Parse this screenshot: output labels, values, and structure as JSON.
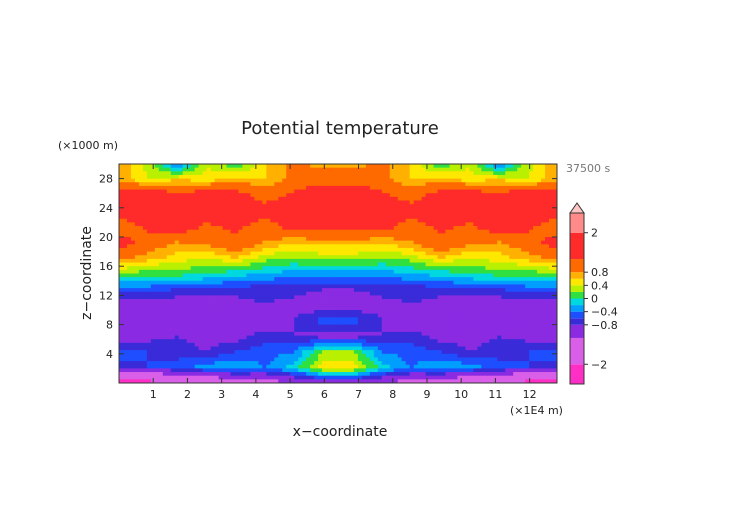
{
  "chart_data": {
    "type": "heatmap",
    "title": "Potential temperature",
    "xlabel": "x−coordinate",
    "ylabel": "z−coordinate",
    "x_unit": "(×1E4 m)",
    "y_unit": "(×1000 m)",
    "time_label": "37500 s",
    "xlim": [
      0,
      12.8
    ],
    "ylim": [
      0,
      30
    ],
    "x_ticks": [
      1,
      2,
      3,
      4,
      5,
      6,
      7,
      8,
      9,
      10,
      11,
      12
    ],
    "x_tick_labels": [
      "1",
      "2",
      "3",
      "4",
      "5",
      "6",
      "7",
      "8",
      "9",
      "10",
      "11",
      "12"
    ],
    "y_ticks": [
      4,
      8,
      12,
      16,
      20,
      24,
      28
    ],
    "y_tick_labels": [
      "4",
      "8",
      "12",
      "16",
      "20",
      "24",
      "28"
    ],
    "colorbar": {
      "range": [
        -2.6,
        2.6
      ],
      "ticks": [
        2,
        0.8,
        0.4,
        0,
        -0.4,
        -0.8,
        -2
      ],
      "tick_labels": [
        "2",
        "0.8",
        "0.4",
        "0",
        "−0.4",
        "−0.8",
        "−2"
      ],
      "extend_top": true,
      "levels": [
        {
          "from": -2.6,
          "to": -2.0,
          "color": "#ff2ec4"
        },
        {
          "from": -2.0,
          "to": -1.2,
          "color": "#d95fe8"
        },
        {
          "from": -1.2,
          "to": -0.8,
          "color": "#8a2be2"
        },
        {
          "from": -0.8,
          "to": -0.6,
          "color": "#3a2bd9"
        },
        {
          "from": -0.6,
          "to": -0.4,
          "color": "#1e4fff"
        },
        {
          "from": -0.4,
          "to": -0.2,
          "color": "#009eff"
        },
        {
          "from": -0.2,
          "to": 0.0,
          "color": "#00d8e0"
        },
        {
          "from": 0.0,
          "to": 0.2,
          "color": "#30e040"
        },
        {
          "from": 0.2,
          "to": 0.4,
          "color": "#b8f000"
        },
        {
          "from": 0.4,
          "to": 0.6,
          "color": "#ffe800"
        },
        {
          "from": 0.6,
          "to": 0.8,
          "color": "#ffb000"
        },
        {
          "from": 0.8,
          "to": 1.2,
          "color": "#ff6a00"
        },
        {
          "from": 1.2,
          "to": 2.0,
          "color": "#ff2a2a"
        },
        {
          "from": 2.0,
          "to": 2.6,
          "color": "#ff8a8a"
        },
        {
          "from": 2.6,
          "to": 3.0,
          "color": "#ffc4c4"
        }
      ]
    },
    "z_grid_rows": 15,
    "z_grid_cols": 16,
    "z": [
      [
        -2.3,
        -2.2,
        -2.0,
        -1.8,
        -1.6,
        -1.4,
        -1.2,
        -1.0,
        -1.0,
        -1.2,
        -1.4,
        -1.6,
        -1.8,
        -2.0,
        -2.2,
        -2.3
      ],
      [
        -0.7,
        -0.6,
        -0.5,
        -0.3,
        -0.2,
        -0.4,
        -0.1,
        0.5,
        0.5,
        -0.1,
        -0.4,
        -0.2,
        -0.3,
        -0.5,
        -0.6,
        -0.7
      ],
      [
        -0.5,
        -0.6,
        -0.7,
        -0.8,
        -0.6,
        -0.5,
        -0.4,
        0.2,
        0.2,
        -0.4,
        -0.5,
        -0.6,
        -0.8,
        -0.7,
        -0.6,
        -0.5
      ],
      [
        -1.0,
        -0.9,
        -0.8,
        -0.9,
        -0.9,
        -0.7,
        -0.8,
        -0.9,
        -0.9,
        -0.8,
        -0.7,
        -0.9,
        -0.9,
        -0.8,
        -0.9,
        -1.0
      ],
      [
        -1.0,
        -1.0,
        -0.9,
        -1.0,
        -0.9,
        -1.0,
        -0.8,
        -0.5,
        -0.5,
        -0.8,
        -1.0,
        -0.9,
        -1.0,
        -0.9,
        -1.0,
        -1.0
      ],
      [
        -1.0,
        -1.0,
        -1.0,
        -1.0,
        -0.9,
        -0.8,
        -0.9,
        -1.0,
        -1.0,
        -0.9,
        -0.8,
        -0.9,
        -1.0,
        -1.0,
        -1.0,
        -1.0
      ],
      [
        -0.5,
        -0.5,
        -0.6,
        -0.6,
        -0.7,
        -0.7,
        -0.7,
        -0.8,
        -0.8,
        -0.7,
        -0.7,
        -0.7,
        -0.6,
        -0.6,
        -0.5,
        -0.5
      ],
      [
        0.2,
        0.1,
        0.1,
        0.0,
        -0.1,
        -0.2,
        -0.3,
        -0.3,
        -0.3,
        -0.3,
        -0.2,
        -0.1,
        0.0,
        0.1,
        0.1,
        0.2
      ],
      [
        0.9,
        0.7,
        0.5,
        0.4,
        0.6,
        0.3,
        0.2,
        0.3,
        0.3,
        0.2,
        0.3,
        0.6,
        0.4,
        0.5,
        0.7,
        0.9
      ],
      [
        1.4,
        1.0,
        0.8,
        0.9,
        1.1,
        0.8,
        0.6,
        0.7,
        0.7,
        0.6,
        0.8,
        1.1,
        0.9,
        0.8,
        1.0,
        1.4
      ],
      [
        0.9,
        1.3,
        1.5,
        1.1,
        1.3,
        1.0,
        1.4,
        1.3,
        1.3,
        1.4,
        1.0,
        1.3,
        1.1,
        1.5,
        1.3,
        0.9
      ],
      [
        1.5,
        1.6,
        1.5,
        1.6,
        1.5,
        1.4,
        1.5,
        1.6,
        1.6,
        1.5,
        1.4,
        1.5,
        1.6,
        1.5,
        1.6,
        1.5
      ],
      [
        1.5,
        1.6,
        1.3,
        1.5,
        1.4,
        1.0,
        1.3,
        1.6,
        1.6,
        1.3,
        1.0,
        1.4,
        1.5,
        1.3,
        1.6,
        1.5
      ],
      [
        0.7,
        0.4,
        0.6,
        0.5,
        0.7,
        0.6,
        0.9,
        1.0,
        1.0,
        0.9,
        0.6,
        0.7,
        0.5,
        0.6,
        0.4,
        0.7
      ],
      [
        0.8,
        0.3,
        -0.5,
        0.4,
        0.0,
        0.6,
        0.9,
        0.7,
        0.7,
        0.9,
        0.6,
        0.0,
        0.4,
        -0.5,
        0.3,
        0.8
      ]
    ]
  }
}
